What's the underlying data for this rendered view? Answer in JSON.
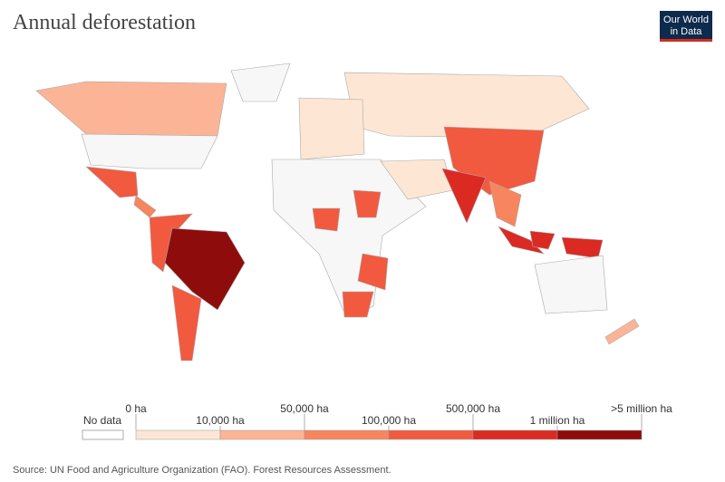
{
  "header": {
    "title": "Annual deforestation",
    "logo": [
      "Our World",
      "in Data"
    ]
  },
  "legend": {
    "no_data": "No data",
    "ticks": [
      "0 ha",
      "10,000 ha",
      "50,000 ha",
      "100,000 ha",
      "500,000 ha",
      "1 million ha",
      ">5 million ha"
    ],
    "colors": [
      "#fde6d4",
      "#fbb496",
      "#f7855e",
      "#f15a3f",
      "#db2a22",
      "#8f0c0c"
    ]
  },
  "source": "Source: UN Food and Agriculture Organization (FAO). Forest Resources Assessment."
}
